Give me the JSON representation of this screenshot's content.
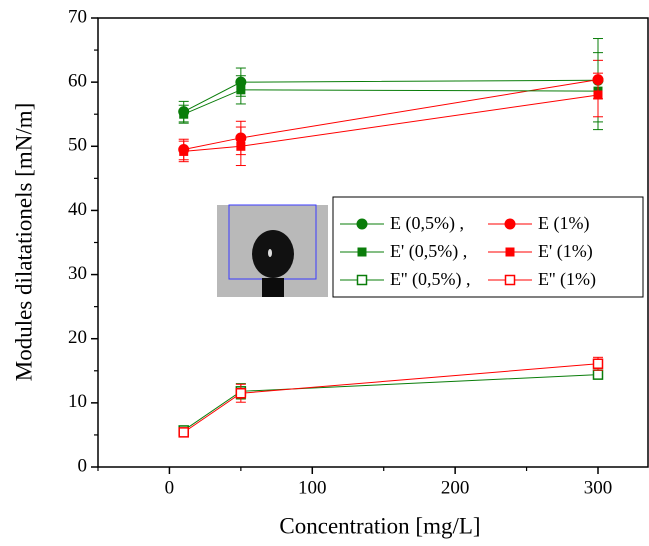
{
  "chart_data": {
    "type": "line",
    "x_label": "Concentration [mg/L]",
    "y_label": "Modules dilatationels [mN/m]",
    "xlim": [
      -50,
      335
    ],
    "xticks": [
      0,
      100,
      200,
      300
    ],
    "xminor": [
      -50,
      50,
      150,
      250
    ],
    "ylim": [
      0,
      70
    ],
    "yticks": [
      0,
      10,
      20,
      30,
      40,
      50,
      60,
      70
    ],
    "yminor": [
      5,
      15,
      25,
      35,
      45,
      55,
      65
    ],
    "x": [
      10,
      50,
      300
    ],
    "series": [
      {
        "name": "E (0,5%) ,",
        "color": "#0a7d0a",
        "marker": "circle",
        "values": [
          55.4,
          60.0,
          60.3
        ],
        "errors": [
          1.6,
          2.2,
          6.5
        ]
      },
      {
        "name": "E (1%)",
        "color": "#ff0000",
        "marker": "circle",
        "values": [
          49.5,
          51.3,
          60.4
        ],
        "errors": [
          1.6,
          2.6,
          3.0
        ]
      },
      {
        "name": "E' (0,5%) ,",
        "color": "#0a7d0a",
        "marker": "square",
        "values": [
          55.0,
          58.8,
          58.6
        ],
        "errors": [
          1.4,
          2.2,
          6.0
        ]
      },
      {
        "name": "E' (1%)",
        "color": "#ff0000",
        "marker": "square",
        "values": [
          49.2,
          50.0,
          58.0
        ],
        "errors": [
          1.6,
          3.0,
          3.4
        ]
      },
      {
        "name": "E'' (0,5%) ,",
        "color": "#0a7d0a",
        "marker": "open-square",
        "values": [
          5.7,
          11.8,
          14.4
        ],
        "errors": [
          0.4,
          1.2,
          0.6
        ]
      },
      {
        "name": "E'' (1%)",
        "color": "#ff0000",
        "marker": "open-square",
        "values": [
          5.4,
          11.5,
          16.1
        ],
        "errors": [
          0.4,
          1.4,
          1.0
        ]
      }
    ]
  }
}
